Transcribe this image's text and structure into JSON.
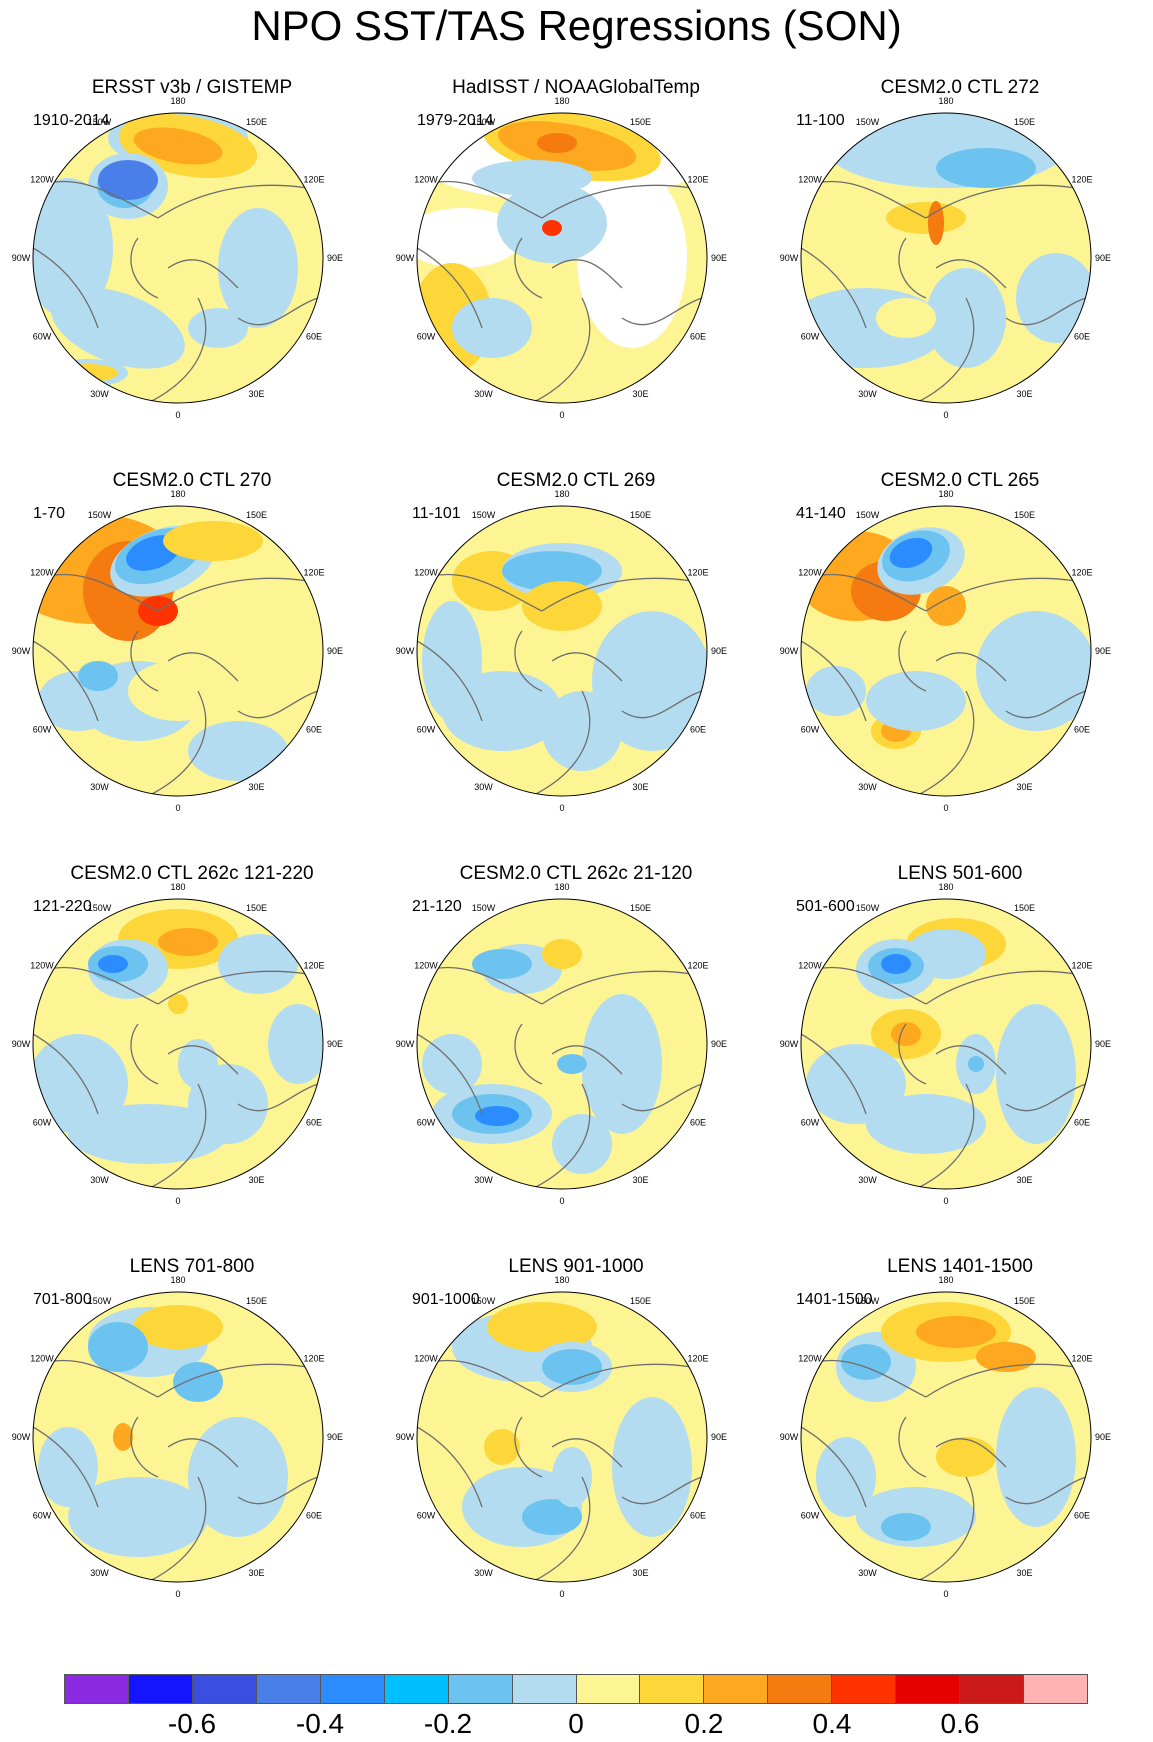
{
  "title": "NPO SST/TAS Regressions (SON)",
  "longitude_labels": [
    "180",
    "150E",
    "120E",
    "90E",
    "60E",
    "30E",
    "0",
    "30W",
    "60W",
    "90W",
    "120W",
    "150W"
  ],
  "panels": [
    {
      "title": "ERSST v3b / GISTEMP",
      "years": "1910-2014"
    },
    {
      "title": "HadISST / NOAAGlobalTemp",
      "years": "1979-2014"
    },
    {
      "title": "CESM2.0 CTL 272",
      "years": "11-100"
    },
    {
      "title": "CESM2.0 CTL 270",
      "years": "1-70"
    },
    {
      "title": "CESM2.0 CTL 269",
      "years": "11-101"
    },
    {
      "title": "CESM2.0 CTL 265",
      "years": "41-140"
    },
    {
      "title": "CESM2.0 CTL 262c 121-220",
      "years": "121-220"
    },
    {
      "title": "CESM2.0 CTL 262c 21-120",
      "years": "21-120"
    },
    {
      "title": "LENS 501-600",
      "years": "501-600"
    },
    {
      "title": "LENS 701-800",
      "years": "701-800"
    },
    {
      "title": "LENS 901-1000",
      "years": "901-1000"
    },
    {
      "title": "LENS 1401-1500",
      "years": "1401-1500"
    }
  ],
  "colorbar": {
    "colors": [
      "#8a2be2",
      "#1414ff",
      "#3a4fe0",
      "#4a7ee8",
      "#2b8cff",
      "#00bfff",
      "#6cc3f0",
      "#b4dcf0",
      "#fdf594",
      "#fdd63a",
      "#fda81e",
      "#f57a10",
      "#ff3300",
      "#e60000",
      "#cc1a1a",
      "#ffb3b3"
    ],
    "labels": [
      "-0.6",
      "-0.4",
      "-0.2",
      "0",
      "0.2",
      "0.4",
      "0.6"
    ]
  }
}
